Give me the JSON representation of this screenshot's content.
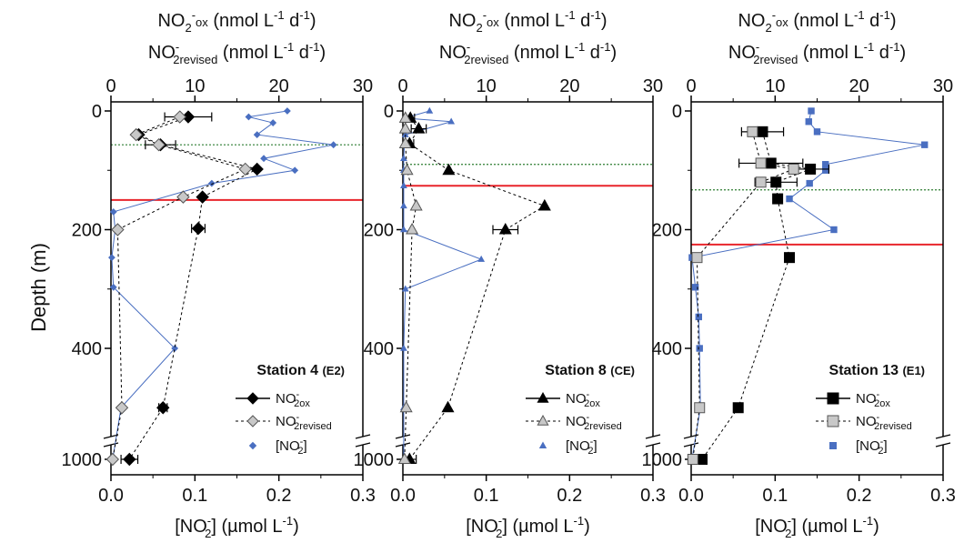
{
  "figure": {
    "ylabel": "Depth (m)",
    "depth_ticks": [
      "0",
      "200",
      "400",
      "1000"
    ],
    "bottom_ticks": [
      "0.0",
      "0.1",
      "0.2",
      "0.3"
    ],
    "top_ticks": [
      "0",
      "10",
      "20",
      "30"
    ],
    "top_title_line1": {
      "a": "NO",
      "b": "2",
      "c": "-",
      "d": "ox",
      "e": " (nmol L",
      "f": "-1",
      "g": " d",
      "h": "-1",
      "i": ")"
    },
    "top_title_line2": {
      "a": "NO",
      "b": "2",
      "c": "-",
      "d": "revised",
      "e": " (nmol L",
      "f": "-1",
      "g": " d",
      "h": "-1",
      "i": ")"
    },
    "bottom_title": {
      "a": "[NO",
      "b": "2",
      "c": "-",
      "d": "] (µmol L",
      "e": "-1",
      "f": ")"
    },
    "legend_labels": {
      "ox": {
        "a": "NO",
        "b": "2",
        "c": "-",
        "d": "ox"
      },
      "rev": {
        "a": "NO",
        "b": "2",
        "c": "-",
        "d": "revised"
      },
      "no2": {
        "a": "[NO",
        "b": "2",
        "c": "-",
        "d": "]"
      }
    },
    "colors": {
      "ox": "#000000",
      "rev_fill": "#c8c8c8",
      "no2": "#4a6fc1",
      "mixed_layer": "#2e7d32",
      "red_line": "#e8252b"
    }
  },
  "chart_data": [
    {
      "type": "scatter",
      "station": "Station 4",
      "code": "(E2)",
      "marker": "diamond",
      "xlabel_bottom": "[NO2-] (µmol L-1)",
      "xlabel_top": "NO2-ox / NO2-revised (nmol L-1 d-1)",
      "ylabel": "Depth (m)",
      "xlim_bottom": [
        0,
        0.3
      ],
      "xlim_top": [
        0,
        30
      ],
      "ylim": [
        0,
        1000
      ],
      "mixed_layer_depth": 57,
      "red_line_depth": 150,
      "series": [
        {
          "name": "NO2- ox",
          "axis": "top",
          "points": [
            {
              "depth": 10,
              "value": 9.2,
              "err": 2.8
            },
            {
              "depth": 40,
              "value": 3.3,
              "err": 0
            },
            {
              "depth": 57,
              "value": 5.9,
              "err": 1.8
            },
            {
              "depth": 98,
              "value": 17.4,
              "err": 0
            },
            {
              "depth": 145,
              "value": 10.9,
              "err": 0
            },
            {
              "depth": 198,
              "value": 10.4,
              "err": 0.8
            },
            {
              "depth": 500,
              "value": 6.2,
              "err": 0.5
            },
            {
              "depth": 1000,
              "value": 2.2,
              "err": 1.0
            }
          ]
        },
        {
          "name": "NO2- revised",
          "axis": "top",
          "points": [
            {
              "depth": 10,
              "value": 8.2
            },
            {
              "depth": 40,
              "value": 3.0
            },
            {
              "depth": 57,
              "value": 5.7
            },
            {
              "depth": 98,
              "value": 16.0
            },
            {
              "depth": 145,
              "value": 8.6
            },
            {
              "depth": 200,
              "value": 0.8
            },
            {
              "depth": 500,
              "value": 1.3
            },
            {
              "depth": 1000,
              "value": 0.2
            }
          ]
        },
        {
          "name": "[NO2-]",
          "axis": "bottom",
          "points": [
            {
              "depth": 0,
              "value": 0.21
            },
            {
              "depth": 10,
              "value": 0.164
            },
            {
              "depth": 20,
              "value": 0.193
            },
            {
              "depth": 40,
              "value": 0.174
            },
            {
              "depth": 57,
              "value": 0.265
            },
            {
              "depth": 80,
              "value": 0.182
            },
            {
              "depth": 100,
              "value": 0.219
            },
            {
              "depth": 122,
              "value": 0.12
            },
            {
              "depth": 170,
              "value": 0.003
            },
            {
              "depth": 200,
              "value": 0.005
            },
            {
              "depth": 247,
              "value": 0.001
            },
            {
              "depth": 297,
              "value": 0.003
            },
            {
              "depth": 400,
              "value": 0.076
            },
            {
              "depth": 500,
              "value": 0.012
            },
            {
              "depth": 1000,
              "value": 0.002
            }
          ]
        }
      ]
    },
    {
      "type": "scatter",
      "station": "Station 8",
      "code": "(CE)",
      "marker": "triangle",
      "xlabel_bottom": "[NO2-] (µmol L-1)",
      "xlabel_top": "NO2-ox / NO2-revised (nmol L-1 d-1)",
      "ylabel": "Depth (m)",
      "xlim_bottom": [
        0,
        0.3
      ],
      "xlim_top": [
        0,
        30
      ],
      "ylim": [
        0,
        1000
      ],
      "mixed_layer_depth": 90,
      "red_line_depth": 126,
      "series": [
        {
          "name": "NO2- ox",
          "axis": "top",
          "points": [
            {
              "depth": 12,
              "value": 0.9,
              "err": 0.5
            },
            {
              "depth": 30,
              "value": 1.9,
              "err": 0.9
            },
            {
              "depth": 55,
              "value": 0.8,
              "err": 0.5
            },
            {
              "depth": 100,
              "value": 5.5,
              "err": 0
            },
            {
              "depth": 160,
              "value": 17.0,
              "err": 0
            },
            {
              "depth": 200,
              "value": 12.3,
              "err": 1.5
            },
            {
              "depth": 500,
              "value": 5.4,
              "err": 0
            },
            {
              "depth": 1000,
              "value": 0.8,
              "err": 0.8
            }
          ]
        },
        {
          "name": "NO2- revised",
          "axis": "top",
          "points": [
            {
              "depth": 12,
              "value": 0.3
            },
            {
              "depth": 30,
              "value": 0.3
            },
            {
              "depth": 55,
              "value": 0.3
            },
            {
              "depth": 100,
              "value": 0.5
            },
            {
              "depth": 160,
              "value": 1.6
            },
            {
              "depth": 200,
              "value": 1.1
            },
            {
              "depth": 500,
              "value": 0.4
            },
            {
              "depth": 1000,
              "value": 0.2
            }
          ]
        },
        {
          "name": "[NO2-]",
          "axis": "bottom",
          "points": [
            {
              "depth": 0,
              "value": 0.032
            },
            {
              "depth": 12,
              "value": 0.002
            },
            {
              "depth": 18,
              "value": 0.058
            },
            {
              "depth": 40,
              "value": 0.003
            },
            {
              "depth": 55,
              "value": 0.002
            },
            {
              "depth": 80,
              "value": 0.001
            },
            {
              "depth": 100,
              "value": 0.001
            },
            {
              "depth": 126,
              "value": 0.001
            },
            {
              "depth": 160,
              "value": 0.001
            },
            {
              "depth": 200,
              "value": 0.001
            },
            {
              "depth": 250,
              "value": 0.094
            },
            {
              "depth": 300,
              "value": 0.003
            },
            {
              "depth": 400,
              "value": 0.001
            },
            {
              "depth": 500,
              "value": 0.001
            },
            {
              "depth": 1000,
              "value": 0.001
            }
          ]
        }
      ]
    },
    {
      "type": "scatter",
      "station": "Station 13",
      "code": "(E1)",
      "marker": "square",
      "xlabel_bottom": "[NO2-] (µmol L-1)",
      "xlabel_top": "NO2-ox / NO2-revised (nmol L-1 d-1)",
      "ylabel": "Depth (m)",
      "xlim_bottom": [
        0,
        0.3
      ],
      "xlim_top": [
        0,
        30
      ],
      "ylim": [
        0,
        1000
      ],
      "mixed_layer_depth": 133,
      "red_line_depth": 225,
      "series": [
        {
          "name": "NO2- ox",
          "axis": "top",
          "points": [
            {
              "depth": 35,
              "value": 8.5,
              "err": 2.5
            },
            {
              "depth": 88,
              "value": 9.5,
              "err": 3.8
            },
            {
              "depth": 98,
              "value": 14.2,
              "err": 2.2
            },
            {
              "depth": 120,
              "value": 10.1,
              "err": 2.5
            },
            {
              "depth": 148,
              "value": 10.3,
              "err": 0
            },
            {
              "depth": 247,
              "value": 11.7,
              "err": 0
            },
            {
              "depth": 500,
              "value": 5.6,
              "err": 0
            },
            {
              "depth": 1000,
              "value": 1.3,
              "err": 0
            }
          ]
        },
        {
          "name": "NO2- revised",
          "axis": "top",
          "points": [
            {
              "depth": 35,
              "value": 7.3
            },
            {
              "depth": 88,
              "value": 8.3
            },
            {
              "depth": 98,
              "value": 12.2
            },
            {
              "depth": 120,
              "value": 8.3
            },
            {
              "depth": 247,
              "value": 0.7
            },
            {
              "depth": 500,
              "value": 1.0
            },
            {
              "depth": 1000,
              "value": 0.2
            }
          ]
        },
        {
          "name": "[NO2-]",
          "axis": "bottom",
          "points": [
            {
              "depth": 0,
              "value": 0.143
            },
            {
              "depth": 18,
              "value": 0.14
            },
            {
              "depth": 35,
              "value": 0.15
            },
            {
              "depth": 57,
              "value": 0.278
            },
            {
              "depth": 90,
              "value": 0.16
            },
            {
              "depth": 100,
              "value": 0.16
            },
            {
              "depth": 122,
              "value": 0.141
            },
            {
              "depth": 148,
              "value": 0.117
            },
            {
              "depth": 200,
              "value": 0.17
            },
            {
              "depth": 247,
              "value": 0.001
            },
            {
              "depth": 297,
              "value": 0.005
            },
            {
              "depth": 347,
              "value": 0.009
            },
            {
              "depth": 400,
              "value": 0.01
            },
            {
              "depth": 500,
              "value": 0.011
            },
            {
              "depth": 1000,
              "value": 0.001
            }
          ]
        }
      ]
    }
  ]
}
